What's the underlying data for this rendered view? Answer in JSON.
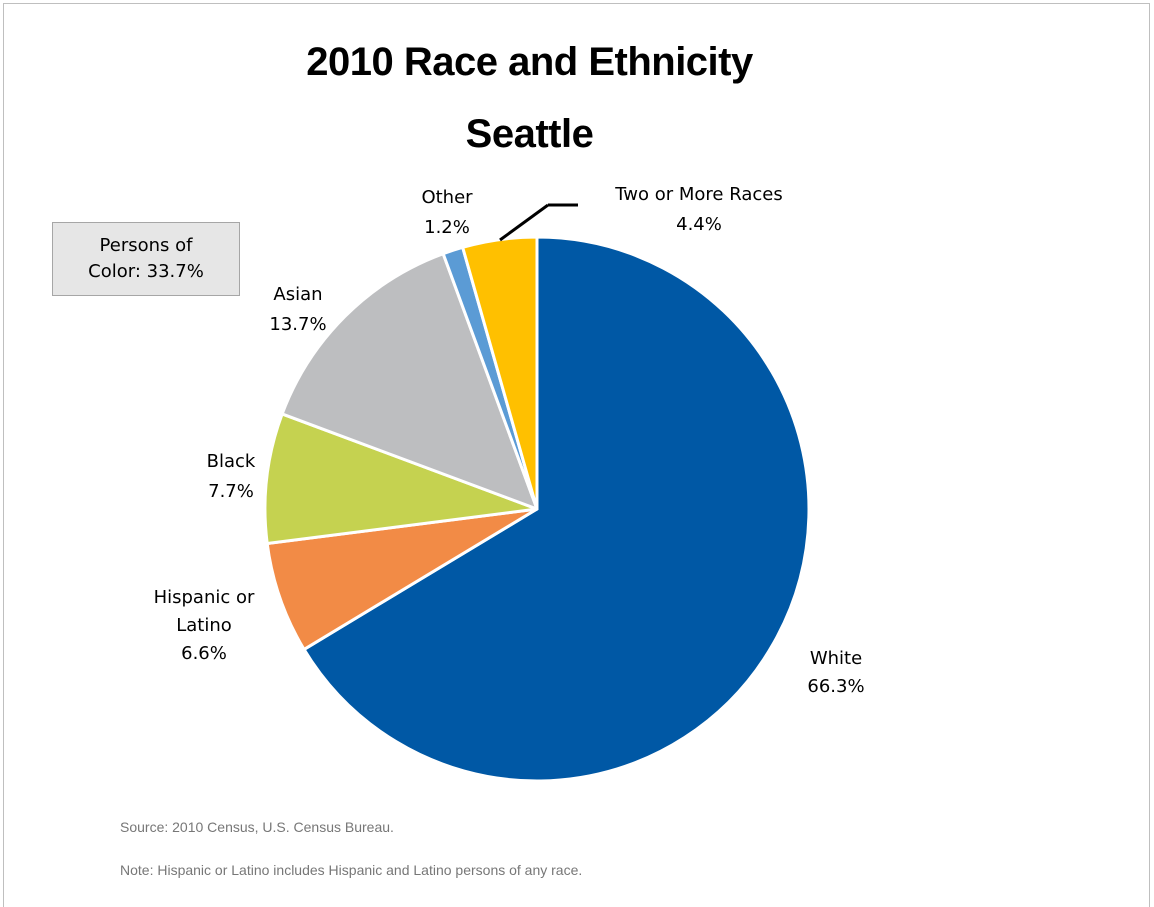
{
  "chart_data": {
    "type": "pie",
    "title": "2010 Race and Ethnicity",
    "subtitle": "Seattle",
    "slices": [
      {
        "name": "White",
        "value": 66.3,
        "label": "66.3%",
        "color": "#0058a5"
      },
      {
        "name": "Hispanic or Latino",
        "value": 6.6,
        "label": "6.6%",
        "color": "#f28b46"
      },
      {
        "name": "Black",
        "value": 7.7,
        "label": "7.7%",
        "color": "#c5d250"
      },
      {
        "name": "Asian",
        "value": 13.7,
        "label": "13.7%",
        "color": "#bdbec0"
      },
      {
        "name": "Other",
        "value": 1.2,
        "label": "1.2%",
        "color": "#5b9bd5"
      },
      {
        "name": "Two or More Races",
        "value": 4.4,
        "label": "4.4%",
        "color": "#ffc000"
      }
    ],
    "annotation": "Persons of Color: 33.7%",
    "legend": "none"
  },
  "callout": {
    "line1": "Persons of",
    "line2": "Color: 33.7%"
  },
  "labels": {
    "white": [
      "White",
      "66.3%"
    ],
    "hispanic": [
      "Hispanic or",
      "Latino",
      "6.6%"
    ],
    "black": [
      "Black",
      "7.7%"
    ],
    "asian": [
      "Asian",
      "13.7%"
    ],
    "other": [
      "Other",
      "1.2%"
    ],
    "two_or_more": [
      "Two or More Races",
      "4.4%"
    ]
  },
  "footer": {
    "source": "Source: 2010 Census, U.S. Census Bureau.",
    "note": "Note: Hispanic or Latino includes Hispanic and Latino persons of any race."
  }
}
